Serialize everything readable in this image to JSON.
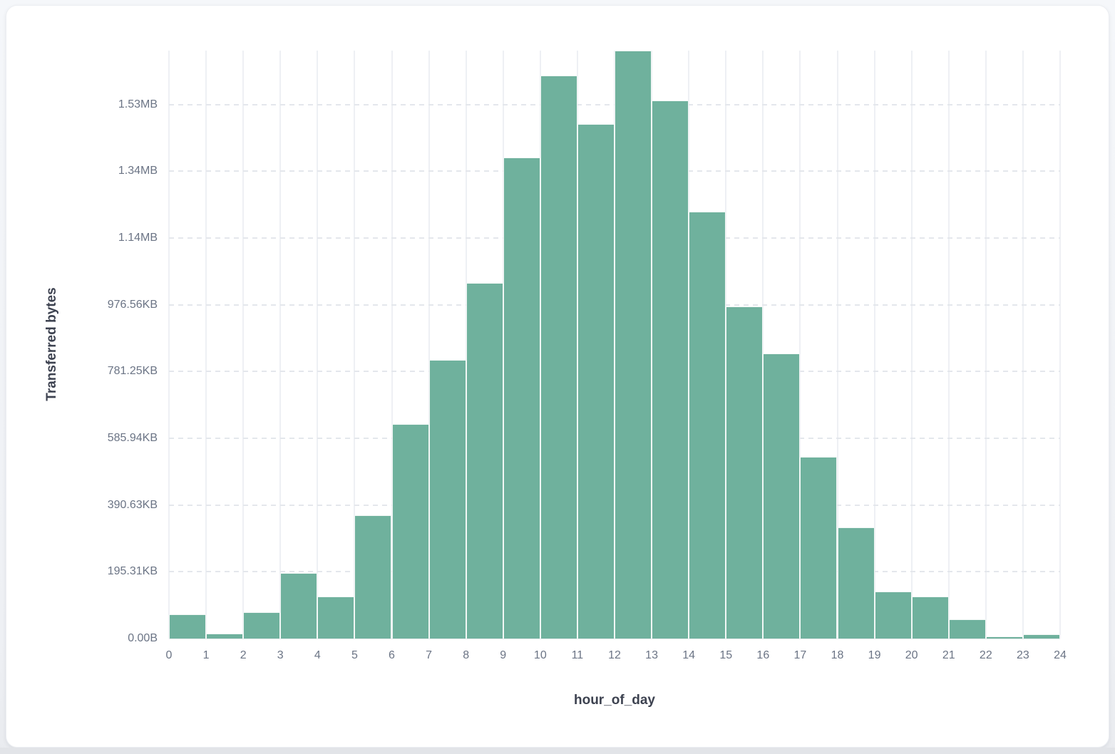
{
  "page": {
    "background_top": "#f5f7fa",
    "background_bottom": "#e9ebef",
    "bottom_strip_color": "#e2e4e8",
    "card_background": "#ffffff"
  },
  "chart_data": {
    "type": "bar",
    "title": "",
    "xlabel": "hour_of_day",
    "ylabel": "Transferred bytes",
    "unit": "bytes",
    "bar_color": "#6fb19d",
    "grid": true,
    "legend": null,
    "x": [
      0,
      1,
      2,
      3,
      4,
      5,
      6,
      7,
      8,
      9,
      10,
      11,
      12,
      13,
      14,
      15,
      16,
      17,
      18,
      19,
      20,
      21,
      22,
      23
    ],
    "values_bytes": [
      73000,
      16000,
      78500,
      197000,
      125500,
      369000,
      642000,
      835000,
      1066000,
      1441000,
      1687000,
      1542000,
      1762000,
      1612000,
      1279000,
      996000,
      855000,
      545000,
      333000,
      141000,
      127000,
      58000,
      6000,
      13000
    ],
    "ylim_bytes": [
      0,
      1762000
    ],
    "y_ticks": [
      {
        "bytes": 0,
        "label": "0.00B"
      },
      {
        "bytes": 200000,
        "label": "195.31KB"
      },
      {
        "bytes": 400000,
        "label": "390.63KB"
      },
      {
        "bytes": 600000,
        "label": "585.94KB"
      },
      {
        "bytes": 800000,
        "label": "781.25KB"
      },
      {
        "bytes": 1000000,
        "label": "976.56KB"
      },
      {
        "bytes": 1200000,
        "label": "1.14MB"
      },
      {
        "bytes": 1400000,
        "label": "1.34MB"
      },
      {
        "bytes": 1600000,
        "label": "1.53MB"
      }
    ],
    "x_ticks": [
      "0",
      "1",
      "2",
      "3",
      "4",
      "5",
      "6",
      "7",
      "8",
      "9",
      "10",
      "11",
      "12",
      "13",
      "14",
      "15",
      "16",
      "17",
      "18",
      "19",
      "20",
      "21",
      "22",
      "23",
      "24"
    ]
  }
}
